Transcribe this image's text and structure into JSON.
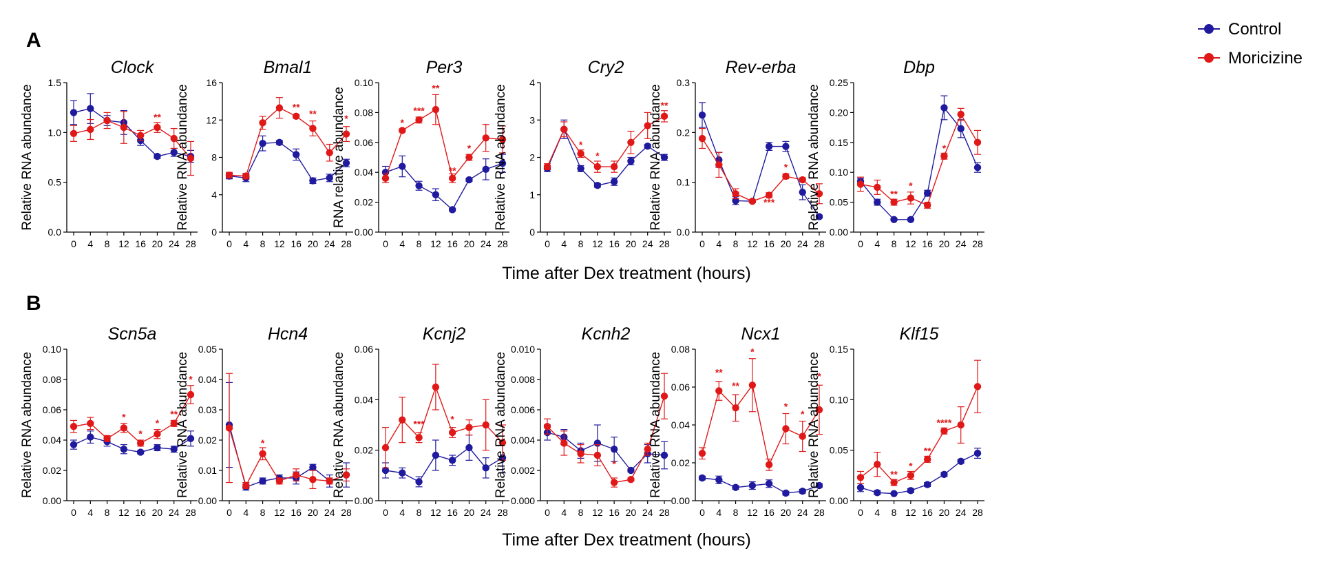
{
  "colors": {
    "control": "#1f1a9e",
    "moricizine": "#e01818",
    "axis": "#000000"
  },
  "panel_labels": {
    "a": "A",
    "b": "B"
  },
  "xlabel_a": "Time after Dex treatment (hours)",
  "xlabel_b": "Time after Dex treatment (hours)",
  "legend": {
    "control": "Control",
    "moricizine": "Moricizine"
  },
  "chart_data": [
    {
      "type": "line",
      "title": "Clock",
      "ylabel": "Relative RNA abundance",
      "x": [
        0,
        4,
        8,
        12,
        16,
        20,
        24,
        28
      ],
      "ylim": [
        0,
        1.5
      ],
      "yticks": [
        "0.0",
        "0.5",
        "1.0",
        "1.5"
      ],
      "series": [
        {
          "name": "Control",
          "values": [
            1.2,
            1.24,
            1.12,
            1.1,
            0.92,
            0.76,
            0.8,
            0.76
          ],
          "err": [
            0.12,
            0.15,
            0.05,
            0.12,
            0.05,
            0.02,
            0.04,
            0.06
          ]
        },
        {
          "name": "Moricizine",
          "values": [
            0.99,
            1.03,
            1.12,
            1.05,
            0.97,
            1.05,
            0.94,
            0.74
          ],
          "err": [
            0.08,
            0.1,
            0.08,
            0.16,
            0.05,
            0.05,
            0.1,
            0.17
          ]
        }
      ],
      "annotations": [
        {
          "x": 20,
          "text": "**",
          "y": 1.12
        }
      ]
    },
    {
      "type": "line",
      "title": "Bmal1",
      "ylabel": "Relative RNA abundance",
      "x": [
        0,
        4,
        8,
        12,
        16,
        20,
        24,
        28
      ],
      "ylim": [
        0,
        16
      ],
      "yticks": [
        "0",
        "4",
        "8",
        "12",
        "16"
      ],
      "series": [
        {
          "name": "Control",
          "values": [
            6.0,
            5.8,
            9.5,
            9.6,
            8.3,
            5.5,
            5.8,
            7.4
          ],
          "err": [
            0.3,
            0.4,
            0.8,
            0.2,
            0.6,
            0.3,
            0.4,
            0.4
          ]
        },
        {
          "name": "Moricizine",
          "values": [
            6.1,
            6.0,
            11.7,
            13.3,
            12.4,
            11.1,
            8.5,
            10.5
          ],
          "err": [
            0.3,
            0.3,
            0.7,
            1.1,
            0.2,
            0.8,
            0.9,
            0.8
          ]
        }
      ],
      "annotations": [
        {
          "x": 16,
          "text": "**",
          "y": 13.0
        },
        {
          "x": 20,
          "text": "**",
          "y": 12.3
        },
        {
          "x": 28,
          "text": "*",
          "y": 11.8
        }
      ]
    },
    {
      "type": "line",
      "title": "Per3",
      "ylabel": "RNA relative abundance",
      "x": [
        0,
        4,
        8,
        12,
        16,
        20,
        24,
        28
      ],
      "ylim": [
        0,
        0.1
      ],
      "yticks": [
        "0.00",
        "0.02",
        "0.04",
        "0.06",
        "0.08",
        "0.10"
      ],
      "series": [
        {
          "name": "Control",
          "values": [
            0.04,
            0.044,
            0.031,
            0.025,
            0.015,
            0.035,
            0.042,
            0.046
          ],
          "err": [
            0.004,
            0.007,
            0.003,
            0.004,
            0.001,
            0.001,
            0.007,
            0.006
          ]
        },
        {
          "name": "Moricizine",
          "values": [
            0.036,
            0.068,
            0.075,
            0.082,
            0.036,
            0.05,
            0.063,
            0.062
          ],
          "err": [
            0.003,
            0.001,
            0.002,
            0.01,
            0.003,
            0.002,
            0.009,
            0.009
          ]
        }
      ],
      "annotations": [
        {
          "x": 4,
          "text": "*",
          "y": 0.071
        },
        {
          "x": 8,
          "text": "***",
          "y": 0.079
        },
        {
          "x": 12,
          "text": "**",
          "y": 0.094
        },
        {
          "x": 16,
          "text": "**",
          "y": 0.039
        },
        {
          "x": 20,
          "text": "*",
          "y": 0.054
        }
      ]
    },
    {
      "type": "line",
      "title": "Cry2",
      "ylabel": "Relative RNA abundance",
      "x": [
        0,
        4,
        8,
        12,
        16,
        20,
        24,
        28
      ],
      "ylim": [
        0,
        4
      ],
      "yticks": [
        "0",
        "1",
        "2",
        "3",
        "4"
      ],
      "series": [
        {
          "name": "Control",
          "values": [
            1.7,
            2.75,
            1.7,
            1.25,
            1.35,
            1.9,
            2.3,
            2.0
          ],
          "err": [
            0.08,
            0.25,
            0.08,
            0.05,
            0.1,
            0.1,
            0.05,
            0.08
          ]
        },
        {
          "name": "Moricizine",
          "values": [
            1.75,
            2.75,
            2.1,
            1.75,
            1.75,
            2.4,
            2.85,
            3.1
          ],
          "err": [
            0.08,
            0.2,
            0.1,
            0.15,
            0.15,
            0.3,
            0.35,
            0.15
          ]
        }
      ],
      "annotations": [
        {
          "x": 8,
          "text": "*",
          "y": 2.25
        },
        {
          "x": 12,
          "text": "*",
          "y": 1.95
        },
        {
          "x": 28,
          "text": "**",
          "y": 3.3
        }
      ]
    },
    {
      "type": "line",
      "title": "Rev-erba",
      "ylabel": "Relative RNA abundance",
      "x": [
        0,
        4,
        8,
        12,
        16,
        20,
        24,
        28
      ],
      "ylim": [
        0,
        0.3
      ],
      "yticks": [
        "0.0",
        "0.1",
        "0.2",
        "0.3"
      ],
      "series": [
        {
          "name": "Control",
          "values": [
            0.235,
            0.145,
            0.063,
            0.062,
            0.172,
            0.172,
            0.08,
            0.031
          ],
          "err": [
            0.025,
            0.015,
            0.008,
            0.003,
            0.008,
            0.01,
            0.015,
            0.003
          ]
        },
        {
          "name": "Moricizine",
          "values": [
            0.188,
            0.135,
            0.077,
            0.062,
            0.074,
            0.112,
            0.105,
            0.077
          ],
          "err": [
            0.02,
            0.025,
            0.01,
            0.003,
            0.005,
            0.005,
            0.004,
            0.02
          ]
        }
      ],
      "annotations": [
        {
          "x": 16,
          "text": "***",
          "y": 0.053
        },
        {
          "x": 20,
          "text": "*",
          "y": 0.124
        }
      ]
    },
    {
      "type": "line",
      "title": "Dbp",
      "ylabel": "Relative RNA abundance",
      "x": [
        0,
        4,
        8,
        12,
        16,
        20,
        24,
        28
      ],
      "ylim": [
        0,
        0.25
      ],
      "yticks": [
        "0.00",
        "0.05",
        "0.10",
        "0.15",
        "0.20",
        "0.25"
      ],
      "series": [
        {
          "name": "Control",
          "values": [
            0.085,
            0.05,
            0.021,
            0.021,
            0.065,
            0.208,
            0.173,
            0.108
          ],
          "err": [
            0.005,
            0.005,
            0.002,
            0.002,
            0.005,
            0.02,
            0.015,
            0.008
          ]
        },
        {
          "name": "Moricizine",
          "values": [
            0.08,
            0.075,
            0.05,
            0.057,
            0.045,
            0.127,
            0.197,
            0.15
          ],
          "err": [
            0.012,
            0.012,
            0.005,
            0.01,
            0.005,
            0.005,
            0.01,
            0.02
          ]
        }
      ],
      "annotations": [
        {
          "x": 8,
          "text": "**",
          "y": 0.058
        },
        {
          "x": 12,
          "text": "*",
          "y": 0.072
        },
        {
          "x": 20,
          "text": "*",
          "y": 0.135
        }
      ]
    },
    {
      "type": "line",
      "title": "Scn5a",
      "ylabel": "Relative RNA abundance",
      "x": [
        0,
        4,
        8,
        12,
        16,
        20,
        24,
        28
      ],
      "ylim": [
        0,
        0.1
      ],
      "yticks": [
        "0.00",
        "0.02",
        "0.04",
        "0.06",
        "0.08",
        "0.10"
      ],
      "series": [
        {
          "name": "Control",
          "values": [
            0.037,
            0.042,
            0.039,
            0.034,
            0.032,
            0.035,
            0.034,
            0.041
          ],
          "err": [
            0.003,
            0.004,
            0.003,
            0.003,
            0.001,
            0.002,
            0.002,
            0.005
          ]
        },
        {
          "name": "Moricizine",
          "values": [
            0.049,
            0.051,
            0.041,
            0.048,
            0.038,
            0.044,
            0.051,
            0.07
          ],
          "err": [
            0.004,
            0.004,
            0.002,
            0.003,
            0.002,
            0.003,
            0.002,
            0.006
          ]
        }
      ],
      "annotations": [
        {
          "x": 12,
          "text": "*",
          "y": 0.053
        },
        {
          "x": 16,
          "text": "*",
          "y": 0.042
        },
        {
          "x": 20,
          "text": "*",
          "y": 0.049
        },
        {
          "x": 24,
          "text": "**",
          "y": 0.055
        },
        {
          "x": 28,
          "text": "*",
          "y": 0.078
        }
      ]
    },
    {
      "type": "line",
      "title": "Hcn4",
      "ylabel": "Relative RNA abundance",
      "x": [
        0,
        4,
        8,
        12,
        16,
        20,
        24,
        28
      ],
      "ylim": [
        0,
        0.05
      ],
      "yticks": [
        "0.00",
        "0.01",
        "0.02",
        "0.03",
        "0.04",
        "0.05"
      ],
      "series": [
        {
          "name": "Control",
          "values": [
            0.025,
            0.0045,
            0.0065,
            0.0075,
            0.0075,
            0.011,
            0.0065,
            0.0085
          ],
          "err": [
            0.014,
            0.001,
            0.001,
            0.001,
            0.002,
            0.001,
            0.002,
            0.004
          ]
        },
        {
          "name": "Moricizine",
          "values": [
            0.024,
            0.005,
            0.0155,
            0.0065,
            0.0085,
            0.007,
            0.0065,
            0.0085
          ],
          "err": [
            0.018,
            0.001,
            0.002,
            0.001,
            0.002,
            0.003,
            0.001,
            0.002
          ]
        }
      ],
      "annotations": [
        {
          "x": 8,
          "text": "*",
          "y": 0.018
        }
      ]
    },
    {
      "type": "line",
      "title": "Kcnj2",
      "ylabel": "Relative RNA abundance",
      "x": [
        0,
        4,
        8,
        12,
        16,
        20,
        24,
        28
      ],
      "ylim": [
        0,
        0.06
      ],
      "yticks": [
        "0.00",
        "0.02",
        "0.04",
        "0.06"
      ],
      "series": [
        {
          "name": "Control",
          "values": [
            0.012,
            0.011,
            0.0075,
            0.018,
            0.016,
            0.021,
            0.013,
            0.017
          ],
          "err": [
            0.003,
            0.002,
            0.002,
            0.006,
            0.002,
            0.005,
            0.004,
            0.006
          ]
        },
        {
          "name": "Moricizine",
          "values": [
            0.021,
            0.032,
            0.025,
            0.045,
            0.027,
            0.029,
            0.03,
            0.023
          ],
          "err": [
            0.008,
            0.009,
            0.002,
            0.009,
            0.002,
            0.003,
            0.01,
            0.007
          ]
        }
      ],
      "annotations": [
        {
          "x": 8,
          "text": "***",
          "y": 0.029
        },
        {
          "x": 16,
          "text": "*",
          "y": 0.031
        }
      ]
    },
    {
      "type": "line",
      "title": "Kcnh2",
      "ylabel": "Relative RNA abundance",
      "x": [
        0,
        4,
        8,
        12,
        16,
        20,
        24,
        28
      ],
      "ylim": [
        0,
        0.01
      ],
      "yticks": [
        "0.000",
        "0.002",
        "0.004",
        "0.006",
        "0.008",
        "0.010"
      ],
      "series": [
        {
          "name": "Control",
          "values": [
            0.0045,
            0.0042,
            0.0033,
            0.0038,
            0.0034,
            0.002,
            0.0031,
            0.003
          ],
          "err": [
            0.0005,
            0.0005,
            0.0005,
            0.0012,
            0.0008,
            0.0001,
            0.0006,
            0.0009
          ]
        },
        {
          "name": "Moricizine",
          "values": [
            0.0049,
            0.0038,
            0.0031,
            0.003,
            0.0012,
            0.0014,
            0.0034,
            0.0069
          ],
          "err": [
            0.0005,
            0.0008,
            0.0006,
            0.0007,
            0.0003,
            0.0001,
            0.0004,
            0.0015
          ]
        }
      ],
      "annotations": [
        {
          "x": 16,
          "text": "*",
          "y": 0.0022
        }
      ]
    },
    {
      "type": "line",
      "title": "Ncx1",
      "ylabel": "Relative RNA abundance",
      "x": [
        0,
        4,
        8,
        12,
        16,
        20,
        24,
        28
      ],
      "ylim": [
        0,
        0.08
      ],
      "yticks": [
        "0.00",
        "0.02",
        "0.04",
        "0.06",
        "0.08"
      ],
      "series": [
        {
          "name": "Control",
          "values": [
            0.012,
            0.011,
            0.007,
            0.008,
            0.009,
            0.004,
            0.005,
            0.008
          ],
          "err": [
            0.001,
            0.002,
            0.001,
            0.002,
            0.002,
            0.001,
            0.001,
            0.001
          ]
        },
        {
          "name": "Moricizine",
          "values": [
            0.025,
            0.058,
            0.049,
            0.061,
            0.019,
            0.038,
            0.034,
            0.048
          ],
          "err": [
            0.003,
            0.005,
            0.007,
            0.014,
            0.003,
            0.008,
            0.008,
            0.013
          ]
        }
      ],
      "annotations": [
        {
          "x": 4,
          "text": "**",
          "y": 0.066
        },
        {
          "x": 8,
          "text": "**",
          "y": 0.059
        },
        {
          "x": 12,
          "text": "*",
          "y": 0.077
        },
        {
          "x": 20,
          "text": "*",
          "y": 0.048
        },
        {
          "x": 24,
          "text": "*",
          "y": 0.044
        },
        {
          "x": 28,
          "text": "*",
          "y": 0.064
        }
      ]
    },
    {
      "type": "line",
      "title": "Klf15",
      "ylabel": "Relative RNA abundance",
      "x": [
        0,
        4,
        8,
        12,
        16,
        20,
        24,
        28
      ],
      "ylim": [
        0,
        0.15
      ],
      "yticks": [
        "0.00",
        "0.05",
        "0.10",
        "0.15"
      ],
      "series": [
        {
          "name": "Control",
          "values": [
            0.013,
            0.008,
            0.007,
            0.01,
            0.016,
            0.026,
            0.039,
            0.047
          ],
          "err": [
            0.004,
            0.002,
            0.001,
            0.002,
            0.002,
            0.002,
            0.002,
            0.005
          ]
        },
        {
          "name": "Moricizine",
          "values": [
            0.023,
            0.036,
            0.018,
            0.025,
            0.041,
            0.069,
            0.075,
            0.113
          ],
          "err": [
            0.006,
            0.012,
            0.003,
            0.004,
            0.003,
            0.003,
            0.018,
            0.026
          ]
        }
      ],
      "annotations": [
        {
          "x": 8,
          "text": "**",
          "y": 0.023
        },
        {
          "x": 12,
          "text": "*",
          "y": 0.031
        },
        {
          "x": 16,
          "text": "**",
          "y": 0.046
        },
        {
          "x": 20,
          "text": "****",
          "y": 0.074
        }
      ]
    }
  ]
}
